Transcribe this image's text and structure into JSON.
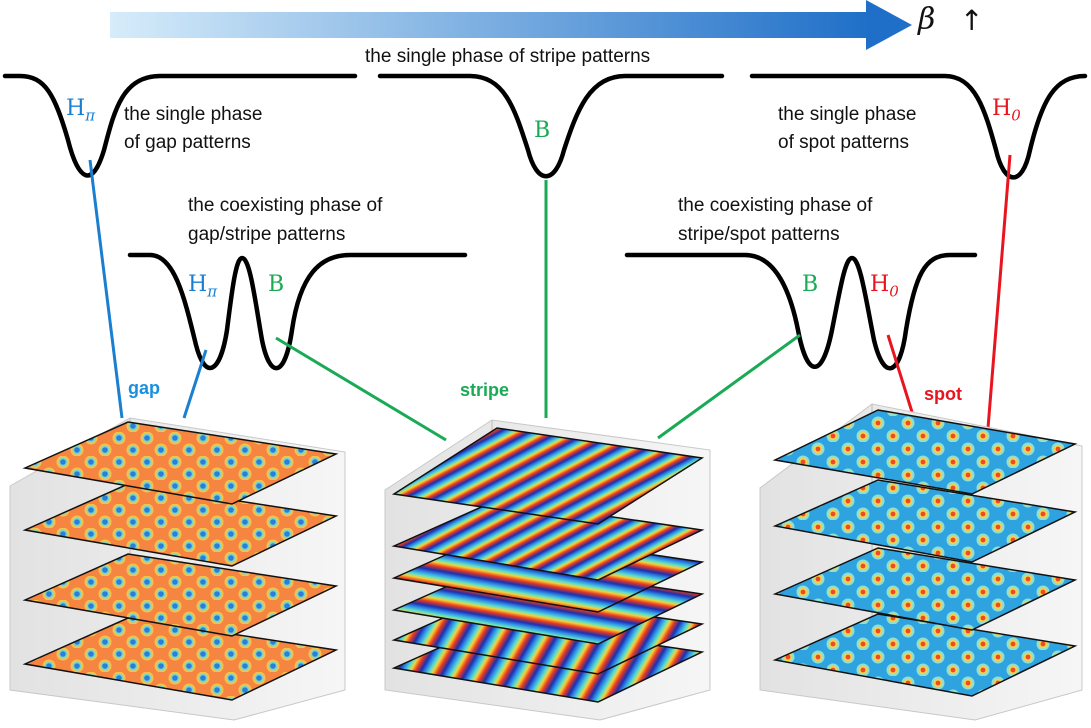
{
  "header": {
    "beta_symbol": "β",
    "beta_arrow": "↑",
    "arrow_gradient": [
      "#d6ecfa",
      "#1f6fc8"
    ]
  },
  "captions": {
    "stripe_single": "the single phase of stripe patterns",
    "gap_single_1": "the single phase",
    "gap_single_2": "of gap patterns",
    "spot_single_1": "the single phase",
    "spot_single_2": "of spot patterns",
    "gap_stripe_coexist_1": "the coexisting phase of",
    "gap_stripe_coexist_2": "gap/stripe patterns",
    "stripe_spot_coexist_1": "the coexisting phase of",
    "stripe_spot_coexist_2": "stripe/spot patterns"
  },
  "minima_labels": {
    "h_pi": {
      "base": "H",
      "sub": "π"
    },
    "b": "B",
    "h_0": {
      "base": "H",
      "sub": "0"
    }
  },
  "pattern_tags": {
    "gap": "gap",
    "stripe": "stripe",
    "spot": "spot"
  },
  "colors": {
    "gap": "#1a7fd0",
    "stripe": "#1aaa55",
    "spot": "#e8141e",
    "curve": "#000000"
  },
  "stacks": {
    "gap": {
      "layers": 4,
      "pattern": "orange hexagonal lattice with cyan holes"
    },
    "stripe": {
      "layers": 6,
      "pattern": "rainbow stripes at varying orientations"
    },
    "spot": {
      "layers": 4,
      "pattern": "cyan background with orange spots"
    }
  }
}
